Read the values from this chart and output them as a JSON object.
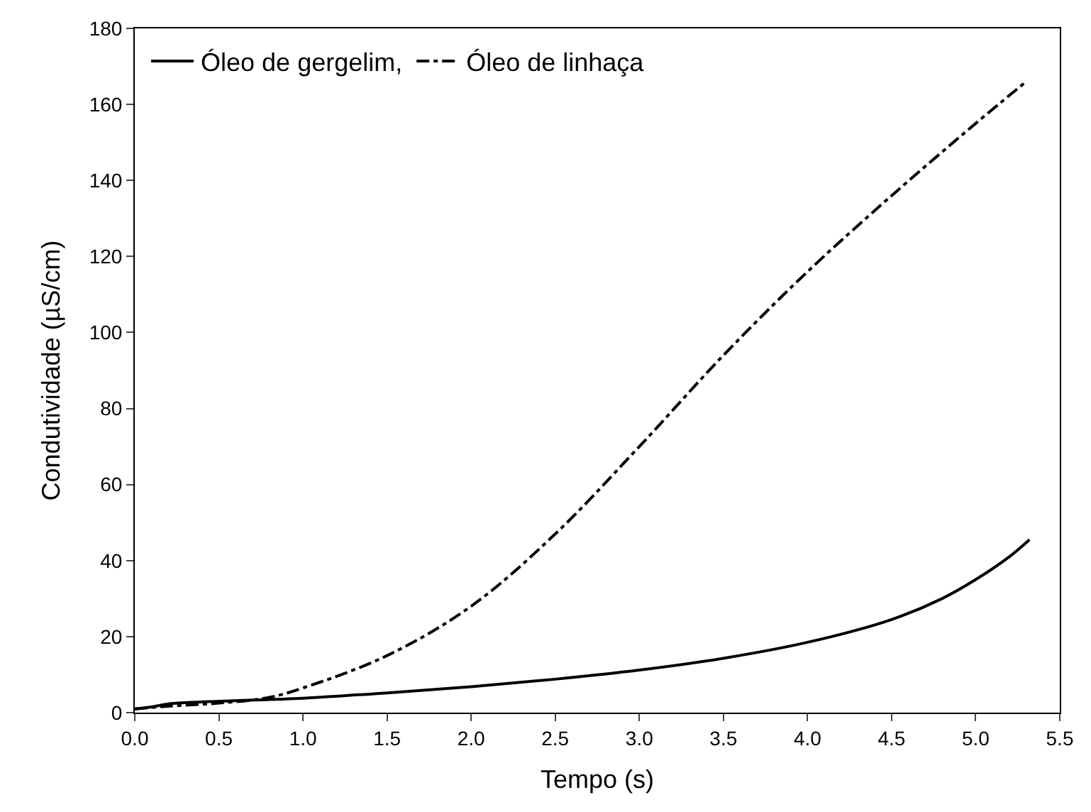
{
  "chart_data": {
    "type": "line",
    "xlabel": "Tempo (s)",
    "ylabel": "Condutividade (µS/cm)",
    "xlim": [
      0,
      5.5
    ],
    "ylim": [
      0,
      180
    ],
    "xticks": [
      {
        "value": 0,
        "label": "0.0"
      },
      {
        "value": 0.5,
        "label": "0.5"
      },
      {
        "value": 1,
        "label": "1.0"
      },
      {
        "value": 1.5,
        "label": "1.5"
      },
      {
        "value": 2,
        "label": "2.0"
      },
      {
        "value": 2.5,
        "label": "2.5"
      },
      {
        "value": 3,
        "label": "3.0"
      },
      {
        "value": 3.5,
        "label": "3.5"
      },
      {
        "value": 4,
        "label": "4.0"
      },
      {
        "value": 4.5,
        "label": "4.5"
      },
      {
        "value": 5,
        "label": "5.0"
      },
      {
        "value": 5.5,
        "label": "5.5"
      }
    ],
    "yticks": [
      0,
      20,
      40,
      60,
      80,
      100,
      120,
      140,
      160,
      180
    ],
    "legend": "top left",
    "marker": "none",
    "series": [
      {
        "name": "Óleo de gergelim,",
        "color": "#000000",
        "line_style": "solid",
        "x": [
          0,
          0.1,
          0.2,
          0.5,
          1.0,
          1.5,
          2.0,
          2.5,
          3.0,
          3.5,
          4.0,
          4.5,
          4.8,
          5.0,
          5.2,
          5.32
        ],
        "values": [
          1,
          1.5,
          2.3,
          3.0,
          3.8,
          5.2,
          6.8,
          8.8,
          11.2,
          14.3,
          18.5,
          24.5,
          30,
          35,
          41,
          45.5
        ]
      },
      {
        "name": "Óleo de linhaça",
        "color": "#000000",
        "line_style": "dashdot",
        "x": [
          0,
          0.2,
          0.5,
          0.8,
          1.0,
          1.5,
          2.0,
          2.5,
          3.0,
          3.5,
          4.0,
          4.5,
          5.0,
          5.3
        ],
        "values": [
          1,
          1.7,
          2.5,
          4,
          6.5,
          15,
          28,
          47,
          70,
          94,
          116,
          136,
          155,
          166
        ]
      }
    ]
  }
}
